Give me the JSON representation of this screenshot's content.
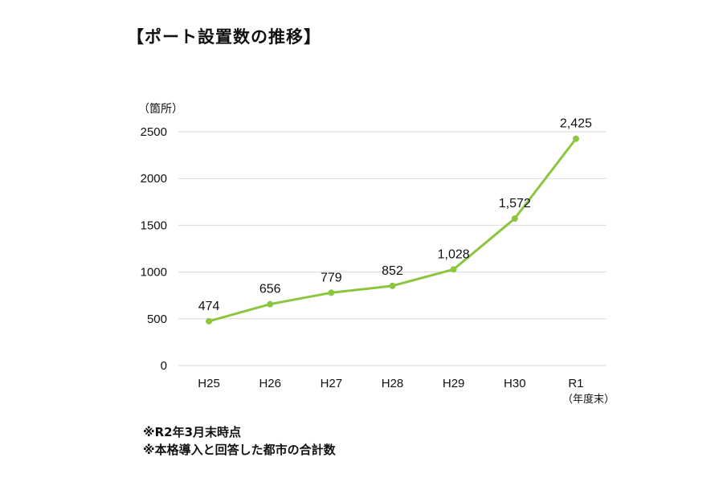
{
  "title": "【ポート設置数の推移】",
  "notes": [
    "※R2年3月末時点",
    "※本格導入と回答した都市の合計数"
  ],
  "chart_data": {
    "type": "line",
    "title": "【ポート設置数の推移】",
    "ylabel": "（箇所）",
    "xlabel_note": "（年度末）",
    "categories": [
      "H25",
      "H26",
      "H27",
      "H28",
      "H29",
      "H30",
      "R1"
    ],
    "series": [
      {
        "values": [
          474,
          656,
          779,
          852,
          1028,
          1572,
          2425
        ],
        "data_labels": [
          "474",
          "656",
          "779",
          "852",
          "1,028",
          "1,572",
          "2,425"
        ]
      }
    ],
    "ylim": [
      0,
      2500
    ],
    "yticks": [
      0,
      500,
      1000,
      1500,
      2000,
      2500
    ],
    "grid": true,
    "legend": "none",
    "colors": {
      "line": "#8cc63f",
      "grid": "#d9d9d9"
    }
  }
}
